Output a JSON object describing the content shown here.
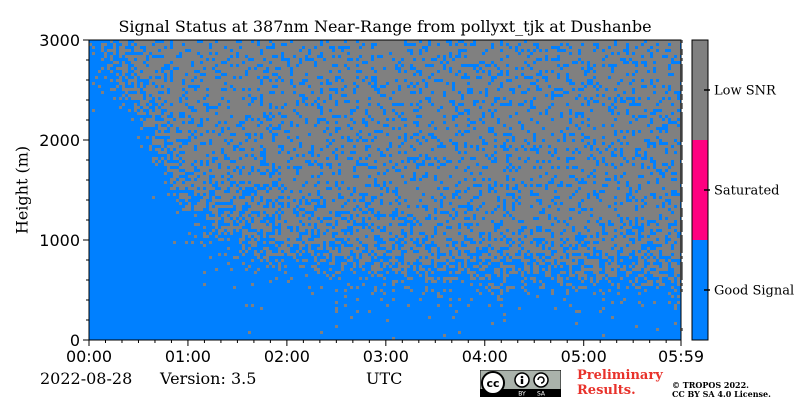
{
  "chart_data": {
    "type": "heatmap",
    "title": "Signal Status at 387nm Near-Range from pollyxt_tjk at Dushanbe",
    "xlabel": "",
    "ylabel": "Height (m)",
    "x_tick_labels": [
      "00:00",
      "01:00",
      "02:00",
      "03:00",
      "04:00",
      "05:00",
      "05:59"
    ],
    "x_tick_values_hours": [
      0,
      1,
      2,
      3,
      4,
      5,
      5.9833
    ],
    "xlim_hours": [
      0,
      5.9833
    ],
    "ylim": [
      0,
      3000
    ],
    "y_ticks": [
      0,
      1000,
      2000,
      3000
    ],
    "y_tick_labels": [
      "0",
      "1000",
      "2000",
      "3000"
    ],
    "categories": [
      "Good Signal",
      "Saturated",
      "Low SNR"
    ],
    "category_colors": [
      "#0080ff",
      "#ff0080",
      "#808080"
    ],
    "good_signal_top_height_m": [
      {
        "time_h": 0.0,
        "height_m": 3000
      },
      {
        "time_h": 0.5,
        "height_m": 2300
      },
      {
        "time_h": 1.0,
        "height_m": 1300
      },
      {
        "time_h": 1.5,
        "height_m": 1000
      },
      {
        "time_h": 2.0,
        "height_m": 850
      },
      {
        "time_h": 3.0,
        "height_m": 700
      },
      {
        "time_h": 4.0,
        "height_m": 650
      },
      {
        "time_h": 5.0,
        "height_m": 650
      },
      {
        "time_h": 5.9833,
        "height_m": 600
      }
    ],
    "grid": false,
    "legend": "colorbar-right"
  },
  "footer": {
    "date": "2022-08-28",
    "version": "Version: 3.5",
    "xlabel": "UTC",
    "preliminary_line1": "Preliminary",
    "preliminary_line2": "Results.",
    "copyright_line1": "© TROPOS 2022.",
    "copyright_line2": "CC BY SA 4.0 License.",
    "cc_logo_text": "cc",
    "cc_by": "BY",
    "cc_sa": "SA"
  }
}
